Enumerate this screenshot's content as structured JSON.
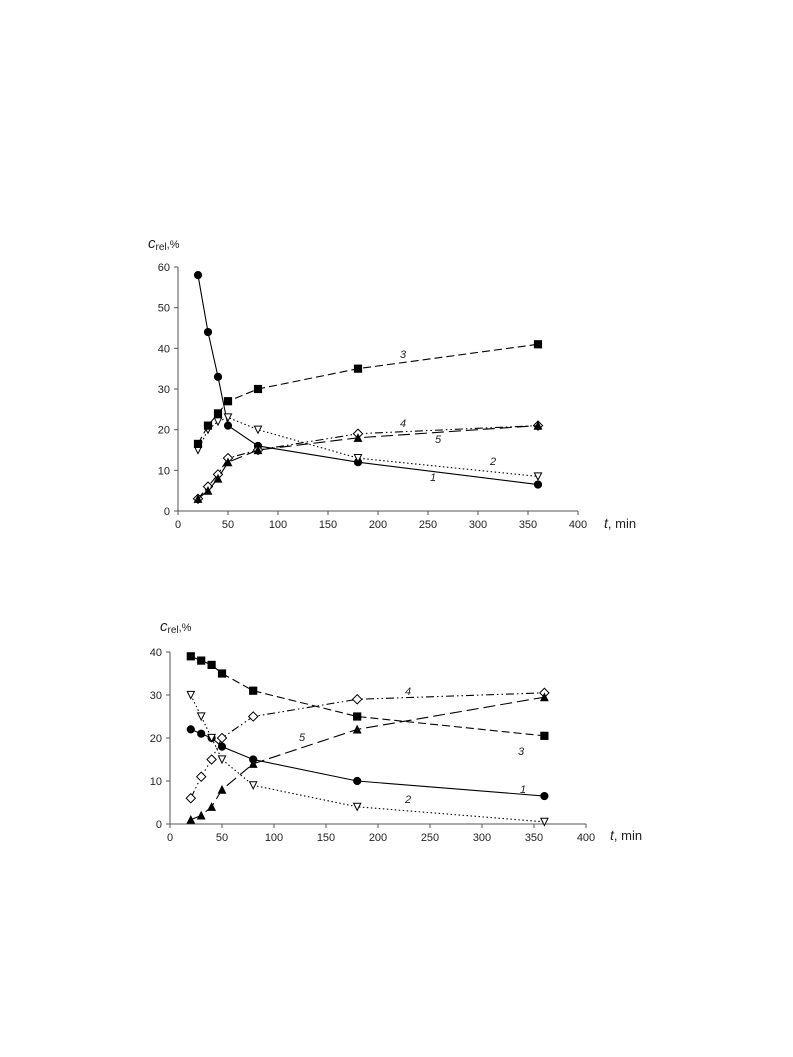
{
  "chart_data": [
    {
      "type": "line",
      "ylabel": {
        "symbol": "c",
        "subscript": "rel",
        "unit": ",%"
      },
      "xlabel": {
        "symbol": "t",
        "unit": ", min"
      },
      "x": [
        20,
        30,
        40,
        50,
        80,
        180,
        360
      ],
      "xlim": [
        0,
        400
      ],
      "xticks": [
        0,
        50,
        100,
        150,
        200,
        250,
        300,
        350,
        400
      ],
      "ylim": [
        0,
        60
      ],
      "yticks": [
        0,
        10,
        20,
        30,
        40,
        50,
        60
      ],
      "series": [
        {
          "name": "1",
          "color": "#000000",
          "marker": "circle",
          "dash": "solid",
          "values": [
            58,
            44,
            33,
            21,
            16,
            12,
            6.5
          ]
        },
        {
          "name": "2",
          "color": "#000000",
          "marker": "triangle-down-open",
          "dash": "dotted",
          "values": [
            15,
            20,
            22,
            23,
            20,
            13,
            8.5
          ]
        },
        {
          "name": "3",
          "color": "#000000",
          "marker": "square",
          "dash": "dashed",
          "values": [
            16.5,
            21,
            24,
            27,
            30,
            35,
            41
          ]
        },
        {
          "name": "4",
          "color": "#000000",
          "marker": "diamond-open",
          "dash": "dashdotdot",
          "values": [
            3,
            6,
            9,
            13,
            15,
            19,
            21
          ]
        },
        {
          "name": "5",
          "color": "#000000",
          "marker": "triangle",
          "dash": "longdash",
          "values": [
            3,
            5,
            8,
            12,
            15,
            18,
            21
          ]
        }
      ]
    },
    {
      "type": "line",
      "ylabel": {
        "symbol": "c",
        "subscript": "rel",
        "unit": ",%"
      },
      "xlabel": {
        "symbol": "t",
        "unit": ", min"
      },
      "x": [
        20,
        30,
        40,
        50,
        80,
        180,
        360
      ],
      "xlim": [
        0,
        400
      ],
      "xticks": [
        0,
        50,
        100,
        150,
        200,
        250,
        300,
        350,
        400
      ],
      "ylim": [
        0,
        40
      ],
      "yticks": [
        0,
        10,
        20,
        30,
        40
      ],
      "series": [
        {
          "name": "1",
          "color": "#000000",
          "marker": "circle",
          "dash": "solid",
          "values": [
            22,
            21,
            20,
            18,
            15,
            10,
            6.5
          ]
        },
        {
          "name": "2",
          "color": "#000000",
          "marker": "triangle-down-open",
          "dash": "dotted",
          "values": [
            30,
            25,
            20,
            15,
            9,
            4,
            0.5
          ]
        },
        {
          "name": "3",
          "color": "#000000",
          "marker": "square",
          "dash": "dashed",
          "values": [
            39,
            38,
            37,
            35,
            31,
            25,
            20.5
          ]
        },
        {
          "name": "4",
          "color": "#000000",
          "marker": "diamond-open",
          "dash": "dashdotdot",
          "values": [
            6,
            11,
            15,
            20,
            25,
            29,
            30.5
          ]
        },
        {
          "name": "5",
          "color": "#000000",
          "marker": "triangle",
          "dash": "longdash",
          "values": [
            1,
            2,
            4,
            8,
            14,
            22,
            29.5
          ]
        }
      ]
    }
  ]
}
